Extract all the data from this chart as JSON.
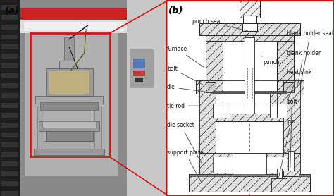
{
  "fig_width": 4.74,
  "fig_height": 2.78,
  "dpi": 100,
  "bg_color": "#ffffff",
  "label_a": "(a)",
  "label_b": "(b)",
  "labels": {
    "punch_seat": "punch seat",
    "furnace": "furnace",
    "bolt_left": "bolt",
    "die": "die",
    "tie_rod": "tie rod",
    "die_socket": "die socket",
    "support_plate": "support plate",
    "punch": "punch",
    "blank_holder_seat": "blank holder seat",
    "blank_holder": "blank holder",
    "heat_sink": "heat sink",
    "bolt_right": "bolt",
    "pin": "pin"
  },
  "line_color": "#222222",
  "text_color": "#111111",
  "font_size": 5.5,
  "label_font_size": 9.5
}
